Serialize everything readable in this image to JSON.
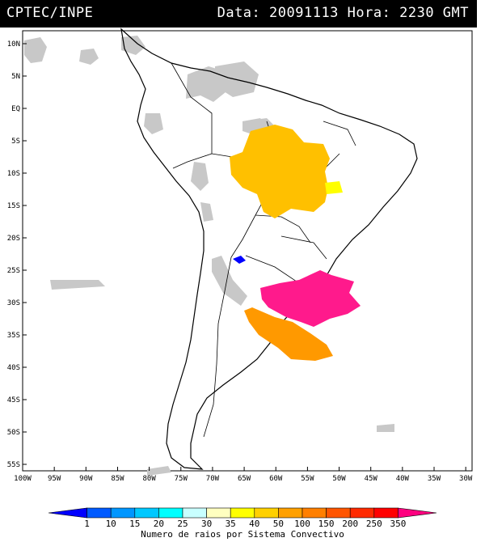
{
  "header": {
    "source": "CPTEC/INPE",
    "date_label": "Data:",
    "date_value": "20091113",
    "time_label": "Hora:",
    "time_value": "2230 GMT"
  },
  "map": {
    "lon_ticks": [
      "100W",
      "95W",
      "90W",
      "85W",
      "80W",
      "75W",
      "70W",
      "65W",
      "60W",
      "55W",
      "50W",
      "45W",
      "40W",
      "35W",
      "30W"
    ],
    "lat_ticks": [
      "10N",
      "5N",
      "EQ",
      "5S",
      "10S",
      "15S",
      "20S",
      "25S",
      "30S",
      "35S",
      "40S",
      "45S",
      "50S",
      "55S"
    ],
    "lon_range": [
      -100,
      -29
    ],
    "lat_range": [
      -56,
      12
    ],
    "clusters": [
      {
        "name": "amazon-cluster",
        "color": "#FFC000",
        "class_max": "50"
      },
      {
        "name": "central-yellow-cluster",
        "color": "#FFFF00",
        "class_max": "40"
      },
      {
        "name": "paraguay-blue-cluster",
        "color": "#0000FF",
        "class_max": "1"
      },
      {
        "name": "southern-brazil-cluster",
        "color": "#FF1A8C",
        "class_max": "350"
      },
      {
        "name": "argentina-orange-cluster",
        "color": "#FF9900",
        "class_max": "100"
      }
    ]
  },
  "legend": {
    "values": [
      "1",
      "10",
      "15",
      "20",
      "25",
      "30",
      "35",
      "40",
      "50",
      "100",
      "150",
      "200",
      "250",
      "350"
    ],
    "colors": [
      "#0000FF",
      "#005AFF",
      "#0096FF",
      "#00C8FF",
      "#00FFFF",
      "#C8FFFF",
      "#FFFFC0",
      "#FFFF00",
      "#FFD000",
      "#FFA000",
      "#FF7F00",
      "#FF5500",
      "#FF2A00",
      "#FF0000",
      "#FF0080"
    ],
    "caption": "Numero de raios por Sistema Convectivo"
  }
}
